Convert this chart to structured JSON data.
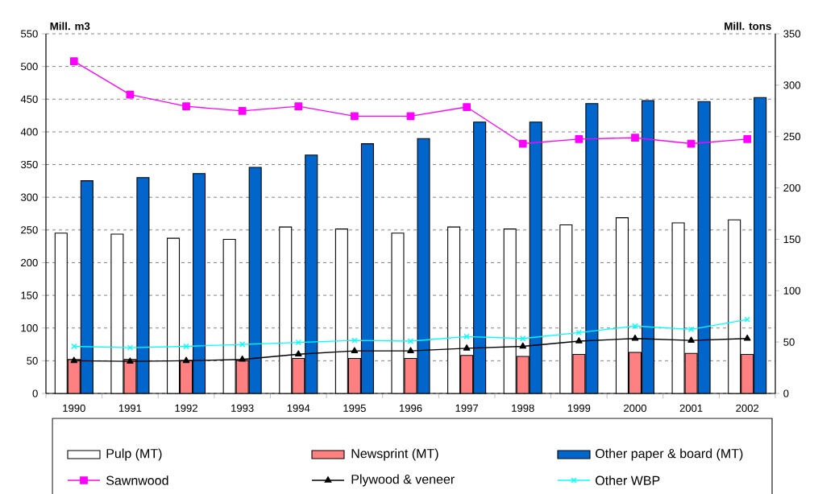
{
  "chart_data": {
    "type": "bar",
    "categories": [
      "1990",
      "1991",
      "1992",
      "1993",
      "1994",
      "1995",
      "1996",
      "1997",
      "1998",
      "1999",
      "2000",
      "2001",
      "2002"
    ],
    "ylabel": "Mill. m3",
    "y2label": "Mill. tons",
    "ylim": [
      0,
      550
    ],
    "yticks": [
      0,
      50,
      100,
      150,
      200,
      250,
      300,
      350,
      400,
      450,
      500,
      550
    ],
    "y2lim": [
      0,
      350
    ],
    "y2ticks": [
      0,
      50,
      100,
      150,
      200,
      250,
      300,
      350
    ],
    "grid": "y",
    "legend": "bottom",
    "series": [
      {
        "name": "Pulp (MT)",
        "axis": "y2",
        "color": "#ffffff",
        "values": [
          156,
          155,
          151,
          150,
          162,
          160,
          156,
          162,
          160,
          164,
          171,
          166,
          169
        ]
      },
      {
        "name": "Newsprint (MT)",
        "axis": "y2",
        "color": "#ff8080",
        "values": [
          33,
          33,
          32,
          32,
          34,
          34,
          34,
          37,
          36,
          38,
          40,
          39,
          38
        ]
      },
      {
        "name": "Other paper & board (MT)",
        "axis": "y2",
        "color": "#0066cc",
        "values": [
          207,
          210,
          214,
          220,
          232,
          243,
          248,
          264,
          264,
          282,
          285,
          284,
          288
        ]
      },
      {
        "name": "Sawnwood",
        "type": "line",
        "color": "#ff00ff",
        "marker": "square",
        "values": [
          508,
          457,
          439,
          432,
          439,
          424,
          424,
          438,
          382,
          389,
          391,
          382,
          389
        ]
      },
      {
        "name": "Plywood & veneer",
        "type": "line",
        "color": "#000000",
        "marker": "triangle",
        "values": [
          50,
          49,
          50,
          52,
          60,
          65,
          65,
          69,
          72,
          80,
          84,
          81,
          84
        ]
      },
      {
        "name": "Other WBP",
        "type": "line",
        "color": "#00ffff",
        "marker": "cross",
        "values": [
          72,
          70,
          72,
          75,
          78,
          81,
          80,
          87,
          84,
          93,
          103,
          98,
          113
        ]
      }
    ]
  }
}
